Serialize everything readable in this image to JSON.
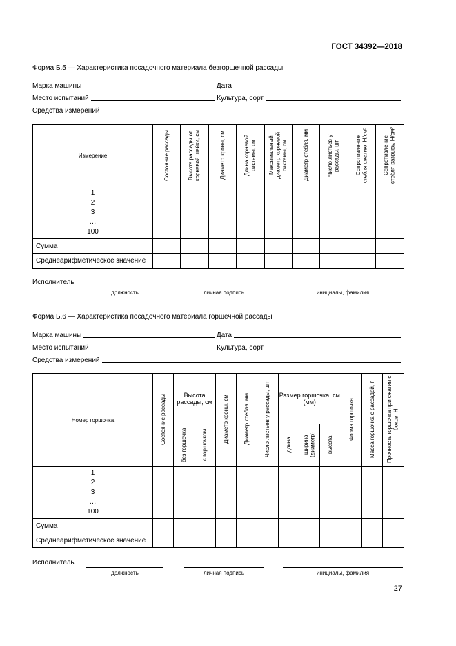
{
  "header": {
    "standard": "ГОСТ 34392—2018"
  },
  "form1": {
    "title": "Форма Б.5 — Характеристика посадочного материала безгоршечной рассады",
    "fields": {
      "machine": "Марка машины",
      "date": "Дата",
      "place": "Место испытаний",
      "crop": "Культура, сорт",
      "tools": "Средства измерений"
    },
    "columns": [
      "Измерение",
      "Состояние рассады",
      "Высота рассады от корневой шейки, см",
      "Диаметр кроны, см",
      "Длина корневой системы, см",
      "Максимальный диаметр корневой системы, см",
      "Диаметр стебля, мм",
      "Число листьев у рассады, шт.",
      "Сопротивление стебля сжатию, Н/см²",
      "Сопротивление стебля разрыву, Н/см²"
    ],
    "rows": [
      "1",
      "2",
      "3",
      "…",
      "100"
    ],
    "sum": "Сумма",
    "mean": "Среднеарифметическое значение"
  },
  "form2": {
    "title": "Форма Б.6 — Характеристика посадочного материала горшечной рассады",
    "fields": {
      "machine": "Марка машины",
      "date": "Дата",
      "place": "Место испытаний",
      "crop": "Культура, сорт",
      "tools": "Средства измерений"
    },
    "col_number": "Номер горшочка",
    "col_state": "Состояние рассады",
    "col_height": "Высота рассады, см",
    "col_height_without": "без горшочка",
    "col_height_with": "с горшочком",
    "col_crown": "Диаметр кроны, см",
    "col_stem": "Диаметр стебля, мм",
    "col_leaves": "Число листьев у рассады, шт",
    "col_size": "Размер горшочка, см (мм)",
    "col_length": "длина",
    "col_width": "ширина (диаметр)",
    "col_pheight": "высота",
    "col_shape": "Форма горшочка",
    "col_mass": "Масса горшочка с рассадой, г",
    "col_strength": "Прочность горшочка при сжатии с боков, Н",
    "rows": [
      "1",
      "2",
      "3",
      "…",
      "100"
    ],
    "sum": "Сумма",
    "mean": "Среднеарифметическое значение"
  },
  "signature": {
    "label": "Исполнитель",
    "position": "должность",
    "sign": "личная подпись",
    "name": "инициалы, фамилия"
  },
  "page_number": "27"
}
